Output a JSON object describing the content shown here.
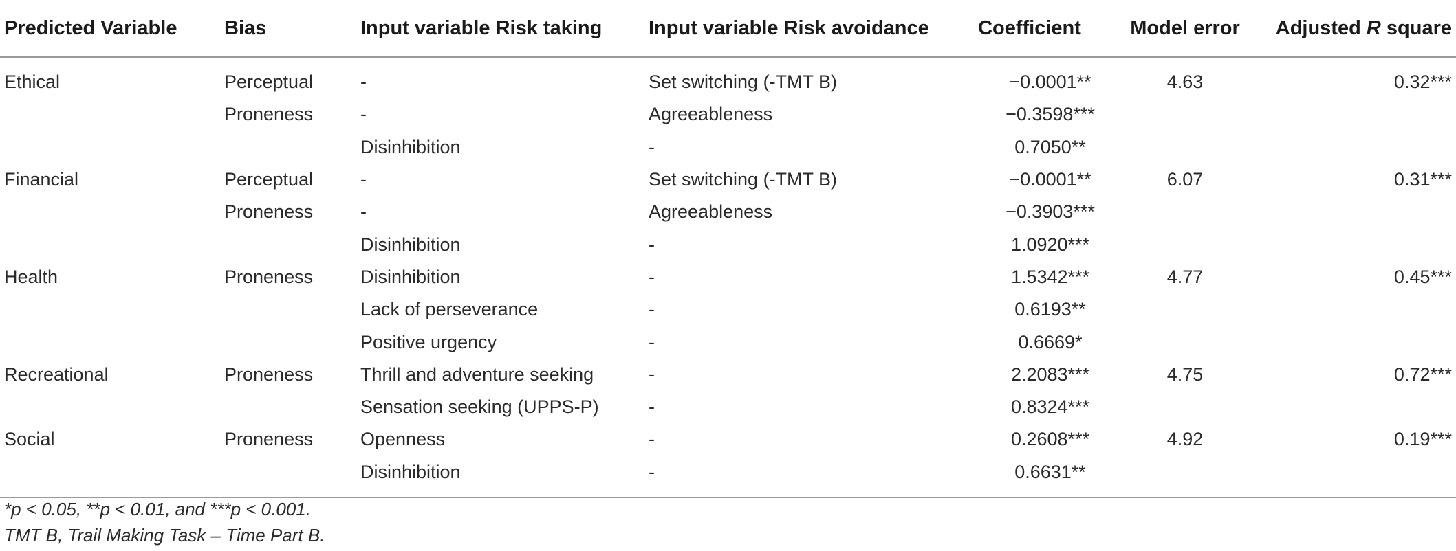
{
  "table": {
    "headers": {
      "predicted_variable": "Predicted Variable",
      "bias": "Bias",
      "input_risk_taking": "Input variable Risk taking",
      "input_risk_avoidance": "Input variable Risk avoidance",
      "coefficient": "Coefficient",
      "model_error": "Model error",
      "adjusted_r_square_prefix": "Adjusted ",
      "adjusted_r_square_italic": "R",
      "adjusted_r_square_suffix": " square"
    },
    "rows": [
      {
        "predicted": "Ethical",
        "bias": "Perceptual",
        "risk_taking": "-",
        "risk_avoidance": "Set switching (-TMT B)",
        "coefficient": "−0.0001**",
        "model_error": "4.63",
        "adj_r2": "0.32***"
      },
      {
        "predicted": "",
        "bias": "Proneness",
        "risk_taking": "-",
        "risk_avoidance": "Agreeableness",
        "coefficient": "−0.3598***",
        "model_error": "",
        "adj_r2": ""
      },
      {
        "predicted": "",
        "bias": "",
        "risk_taking": "Disinhibition",
        "risk_avoidance": "-",
        "coefficient": "0.7050**",
        "model_error": "",
        "adj_r2": ""
      },
      {
        "predicted": "Financial",
        "bias": "Perceptual",
        "risk_taking": "-",
        "risk_avoidance": "Set switching (-TMT B)",
        "coefficient": "−0.0001**",
        "model_error": "6.07",
        "adj_r2": "0.31***"
      },
      {
        "predicted": "",
        "bias": "Proneness",
        "risk_taking": "-",
        "risk_avoidance": "Agreeableness",
        "coefficient": "−0.3903***",
        "model_error": "",
        "adj_r2": ""
      },
      {
        "predicted": "",
        "bias": "",
        "risk_taking": "Disinhibition",
        "risk_avoidance": "-",
        "coefficient": "1.0920***",
        "model_error": "",
        "adj_r2": ""
      },
      {
        "predicted": "Health",
        "bias": "Proneness",
        "risk_taking": "Disinhibition",
        "risk_avoidance": "-",
        "coefficient": "1.5342***",
        "model_error": "4.77",
        "adj_r2": "0.45***"
      },
      {
        "predicted": "",
        "bias": "",
        "risk_taking": "Lack of perseverance",
        "risk_avoidance": "-",
        "coefficient": "0.6193**",
        "model_error": "",
        "adj_r2": ""
      },
      {
        "predicted": "",
        "bias": "",
        "risk_taking": "Positive urgency",
        "risk_avoidance": "-",
        "coefficient": "0.6669*",
        "model_error": "",
        "adj_r2": ""
      },
      {
        "predicted": "Recreational",
        "bias": "Proneness",
        "risk_taking": "Thrill and adventure seeking",
        "risk_avoidance": "-",
        "coefficient": "2.2083***",
        "model_error": "4.75",
        "adj_r2": "0.72***"
      },
      {
        "predicted": "",
        "bias": "",
        "risk_taking": "Sensation seeking (UPPS-P)",
        "risk_avoidance": "-",
        "coefficient": "0.8324***",
        "model_error": "",
        "adj_r2": ""
      },
      {
        "predicted": "Social",
        "bias": "Proneness",
        "risk_taking": "Openness",
        "risk_avoidance": "-",
        "coefficient": "0.2608***",
        "model_error": "4.92",
        "adj_r2": "0.19***"
      },
      {
        "predicted": "",
        "bias": "",
        "risk_taking": "Disinhibition",
        "risk_avoidance": "-",
        "coefficient": "0.6631**",
        "model_error": "",
        "adj_r2": ""
      }
    ]
  },
  "footnotes": {
    "significance": "*p < 0.05, **p < 0.01, and ***p < 0.001.",
    "abbreviation": "TMT B, Trail Making Task – Time Part B."
  }
}
